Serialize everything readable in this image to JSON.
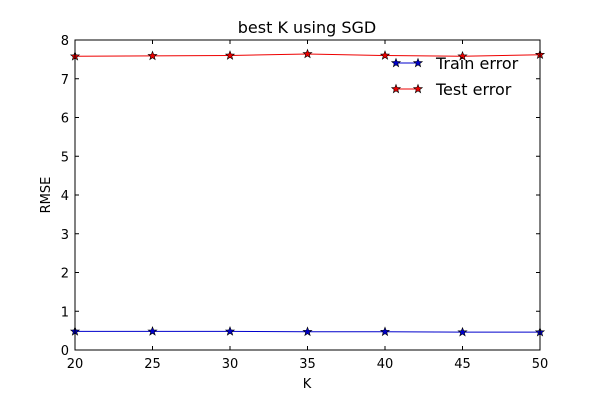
{
  "chart_data": {
    "type": "line",
    "title": "best K using SGD",
    "xlabel": "K",
    "ylabel": "RMSE",
    "xlim": [
      20,
      50
    ],
    "ylim": [
      0,
      8
    ],
    "xticks": [
      20,
      25,
      30,
      35,
      40,
      45,
      50
    ],
    "yticks": [
      0,
      1,
      2,
      3,
      4,
      5,
      6,
      7,
      8
    ],
    "grid": false,
    "legend": "top-right",
    "x": [
      20,
      25,
      30,
      35,
      40,
      45,
      50
    ],
    "series": [
      {
        "name": "Train error",
        "color": "#0000cc",
        "marker": "star",
        "values": [
          0.48,
          0.48,
          0.48,
          0.47,
          0.47,
          0.46,
          0.46
        ]
      },
      {
        "name": "Test error",
        "color": "#ee0000",
        "marker": "star",
        "values": [
          7.58,
          7.59,
          7.6,
          7.64,
          7.6,
          7.58,
          7.62
        ]
      }
    ]
  }
}
